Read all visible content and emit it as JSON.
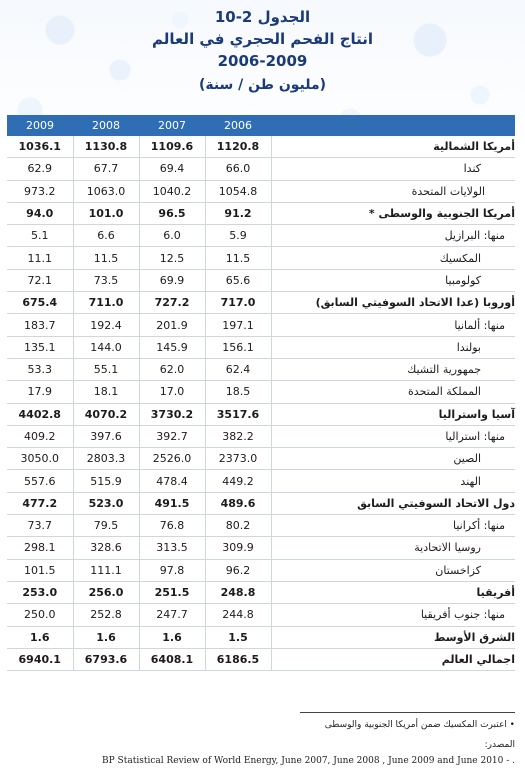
{
  "titles": {
    "line1": "الجدول 2-10",
    "line2": "انتاج الفحم الحجري في العالم",
    "line3": "2006-2009",
    "line4": "(مليون طن / سنة)"
  },
  "table": {
    "headers": [
      "2009",
      "2008",
      "2007",
      "2006"
    ],
    "rows": [
      {
        "label": "أمريكا الشمالية",
        "values": [
          "1036.1",
          "1130.8",
          "1109.6",
          "1120.8"
        ],
        "style": "bold"
      },
      {
        "label": "كندا",
        "values": [
          "62.9",
          "67.7",
          "69.4",
          "66.0"
        ],
        "style": "sub2"
      },
      {
        "label": "الولايات المتحدة",
        "values": [
          "973.2",
          "1063.0",
          "1040.2",
          "1054.8"
        ],
        "style": "sub3"
      },
      {
        "label": "أمريكا الجنوبية والوسطى *",
        "values": [
          "94.0",
          "101.0",
          "96.5",
          "91.2"
        ],
        "style": "bold"
      },
      {
        "label": "منها: البرازيل",
        "values": [
          "5.1",
          "6.6",
          "6.0",
          "5.9"
        ],
        "style": "sub"
      },
      {
        "label": "المكسيك",
        "values": [
          "11.1",
          "11.5",
          "12.5",
          "11.5"
        ],
        "style": "sub2"
      },
      {
        "label": "كولومبيا",
        "values": [
          "72.1",
          "73.5",
          "69.9",
          "65.6"
        ],
        "style": "sub2"
      },
      {
        "label": "أوروبا (عدا الاتحاد السوفيتي السابق)",
        "values": [
          "675.4",
          "711.0",
          "727.2",
          "717.0"
        ],
        "style": "bold"
      },
      {
        "label": "منها: ألمانيا",
        "values": [
          "183.7",
          "192.4",
          "201.9",
          "197.1"
        ],
        "style": "sub"
      },
      {
        "label": "بولندا",
        "values": [
          "135.1",
          "144.0",
          "145.9",
          "156.1"
        ],
        "style": "sub2"
      },
      {
        "label": "جمهورية التشيك",
        "values": [
          "53.3",
          "55.1",
          "62.0",
          "62.4"
        ],
        "style": "sub2"
      },
      {
        "label": "المملكة المتحدة",
        "values": [
          "17.9",
          "18.1",
          "17.0",
          "18.5"
        ],
        "style": "sub2"
      },
      {
        "label": "آسيا واستراليا",
        "values": [
          "4402.8",
          "4070.2",
          "3730.2",
          "3517.6"
        ],
        "style": "bold"
      },
      {
        "label": "منها: استراليا",
        "values": [
          "409.2",
          "397.6",
          "392.7",
          "382.2"
        ],
        "style": "sub"
      },
      {
        "label": "الصين",
        "values": [
          "3050.0",
          "2803.3",
          "2526.0",
          "2373.0"
        ],
        "style": "sub2"
      },
      {
        "label": "الهند",
        "values": [
          "557.6",
          "515.9",
          "478.4",
          "449.2"
        ],
        "style": "sub2"
      },
      {
        "label": "دول الاتحاد السوفيتي السابق",
        "values": [
          "477.2",
          "523.0",
          "491.5",
          "489.6"
        ],
        "style": "bold"
      },
      {
        "label": "منها: أكرانيا",
        "values": [
          "73.7",
          "79.5",
          "76.8",
          "80.2"
        ],
        "style": "sub"
      },
      {
        "label": "روسيا الاتحادية",
        "values": [
          "298.1",
          "328.6",
          "313.5",
          "309.9"
        ],
        "style": "sub2"
      },
      {
        "label": "كزاخستان",
        "values": [
          "101.5",
          "111.1",
          "97.8",
          "96.2"
        ],
        "style": "sub2"
      },
      {
        "label": "أفريقيا",
        "values": [
          "253.0",
          "256.0",
          "251.5",
          "248.8"
        ],
        "style": "bold"
      },
      {
        "label": "منها: جنوب أفريقيا",
        "values": [
          "250.0",
          "252.8",
          "247.7",
          "244.8"
        ],
        "style": "sub"
      },
      {
        "label": "الشرق الأوسط",
        "values": [
          "1.6",
          "1.6",
          "1.6",
          "1.5"
        ],
        "style": "bold"
      },
      {
        "label": "اجمالي العالم",
        "values": [
          "6940.1",
          "6793.6",
          "6408.1",
          "6186.5"
        ],
        "style": "bold"
      }
    ]
  },
  "footer": {
    "footnote": "• اعتبرت المكسيك ضمن أمريكا الجنوبية والوسطى",
    "source_label": "المصدر:",
    "source": "BP Statistical Review of World Energy, June 2007, June 2008 , June 2009  and June 2010 - ."
  }
}
